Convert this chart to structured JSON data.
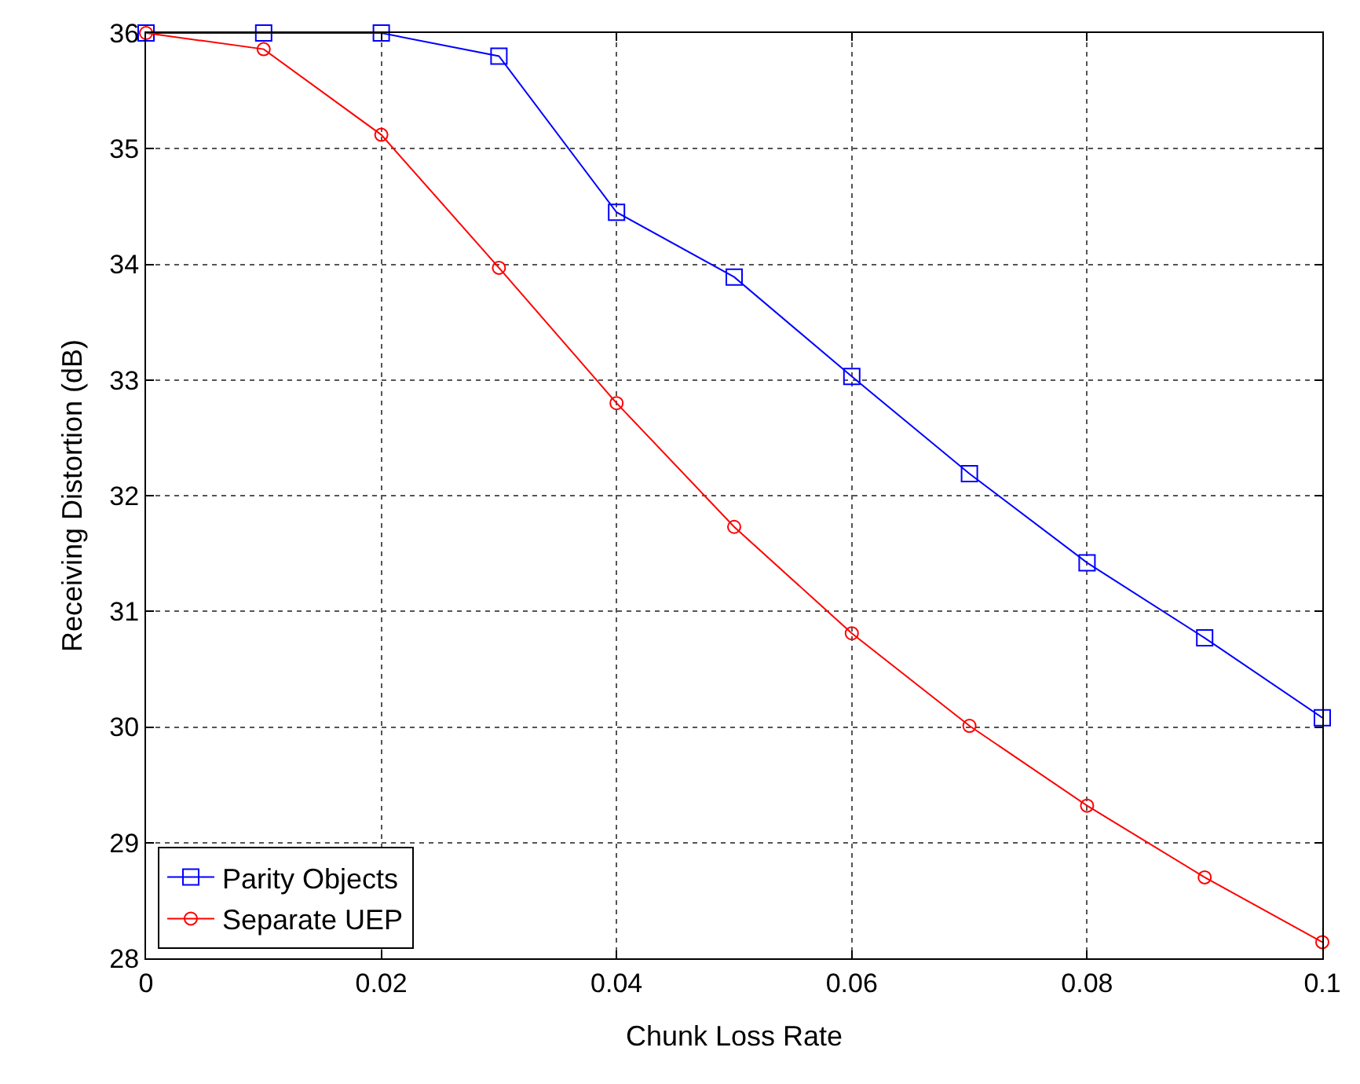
{
  "chart_data": {
    "type": "line",
    "xlabel": "Chunk Loss Rate",
    "ylabel": "Receiving Distortion (dB)",
    "x": [
      0,
      0.01,
      0.02,
      0.03,
      0.04,
      0.05,
      0.06,
      0.07,
      0.08,
      0.09,
      0.1
    ],
    "series": [
      {
        "name": "Parity Objects",
        "color": "#0000ff",
        "marker": "square",
        "values": [
          36,
          36,
          36,
          35.8,
          34.45,
          33.89,
          33.03,
          32.19,
          31.42,
          30.77,
          30.08
        ]
      },
      {
        "name": "Separate UEP",
        "color": "#ff0000",
        "marker": "circle",
        "values": [
          36,
          35.86,
          35.12,
          33.97,
          32.8,
          31.73,
          30.81,
          30.01,
          29.32,
          28.7,
          28.14
        ]
      }
    ],
    "xlim": [
      0,
      0.1
    ],
    "xticks": [
      0,
      0.02,
      0.04,
      0.06,
      0.08,
      0.1
    ],
    "ylim": [
      28,
      36
    ],
    "yticks": [
      28,
      29,
      30,
      31,
      32,
      33,
      34,
      35,
      36
    ],
    "grid": true,
    "legend": "bottom left",
    "line_style": "solid"
  }
}
